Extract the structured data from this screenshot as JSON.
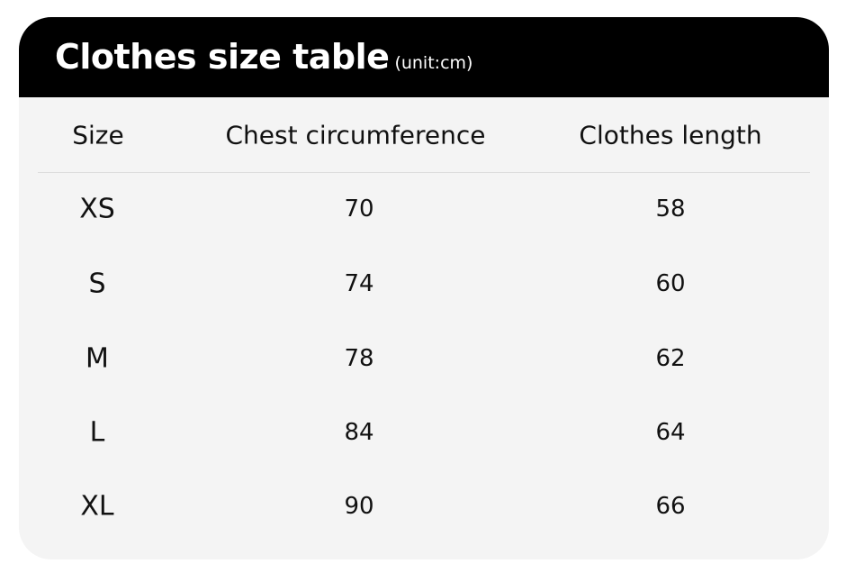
{
  "title": "Clothes size table",
  "unit": "(unit:cm)",
  "columns": [
    "Size",
    "Chest circumference",
    "Clothes length"
  ],
  "rows": [
    [
      "XS",
      "70",
      "58"
    ],
    [
      "S",
      "74",
      "60"
    ],
    [
      "M",
      "78",
      "62"
    ],
    [
      "L",
      "84",
      "64"
    ],
    [
      "XL",
      "90",
      "66"
    ]
  ]
}
